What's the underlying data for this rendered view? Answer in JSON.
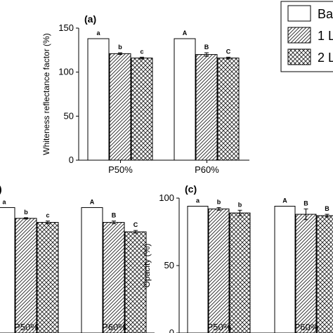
{
  "legend": {
    "placement": "top-right",
    "entries": [
      {
        "label": "Ba",
        "pattern": "none"
      },
      {
        "label": "1 L",
        "pattern": "diagonal-hatch"
      },
      {
        "label": "2 L",
        "pattern": "cross-hatch"
      }
    ]
  },
  "chart_data": [
    {
      "type": "bar",
      "panel": "(a)",
      "ylabel": "Whiteness reflectance factor (%)",
      "xlabel": "",
      "ylim": [
        0,
        150
      ],
      "yticks": [
        0,
        50,
        100,
        150
      ],
      "categories": [
        "P50%",
        "P60%"
      ],
      "series": [
        {
          "name": "Ba",
          "values": [
            138,
            138
          ],
          "errors": [
            0,
            0
          ],
          "labels": [
            "a",
            "A"
          ]
        },
        {
          "name": "1 L",
          "values": [
            121,
            120
          ],
          "errors": [
            1,
            2
          ],
          "labels": [
            "b",
            "B"
          ]
        },
        {
          "name": "2 L",
          "values": [
            116,
            116
          ],
          "errors": [
            1,
            1
          ],
          "labels": [
            "c",
            "C"
          ]
        }
      ]
    },
    {
      "type": "bar",
      "panel": "",
      "ylabel": "",
      "xlabel": "",
      "ylim": [
        0,
        100
      ],
      "yticks": [],
      "categories": [
        "P50%",
        "P60%"
      ],
      "series": [
        {
          "name": "Ba",
          "values": [
            93,
            93
          ],
          "errors": [
            0,
            0
          ],
          "labels": [
            "a",
            "A"
          ]
        },
        {
          "name": "1 L",
          "values": [
            85,
            82
          ],
          "errors": [
            0.5,
            1
          ],
          "labels": [
            "b",
            "B"
          ]
        },
        {
          "name": "2 L",
          "values": [
            82,
            75
          ],
          "errors": [
            1,
            1
          ],
          "labels": [
            "c",
            "C"
          ]
        }
      ]
    },
    {
      "type": "bar",
      "panel": "(c)",
      "ylabel": "Opacity (%)",
      "xlabel": "",
      "ylim": [
        0,
        100
      ],
      "yticks": [
        0,
        50,
        100
      ],
      "categories": [
        "P50%",
        "P60%"
      ],
      "series": [
        {
          "name": "Ba",
          "values": [
            94,
            94
          ],
          "errors": [
            0,
            0
          ],
          "labels": [
            "a",
            "A"
          ]
        },
        {
          "name": "1 L",
          "values": [
            92,
            88
          ],
          "errors": [
            1,
            4
          ],
          "labels": [
            "b",
            "B"
          ]
        },
        {
          "name": "2 L",
          "values": [
            89,
            87
          ],
          "errors": [
            2,
            1
          ],
          "labels": [
            "b",
            "B"
          ]
        }
      ]
    }
  ]
}
